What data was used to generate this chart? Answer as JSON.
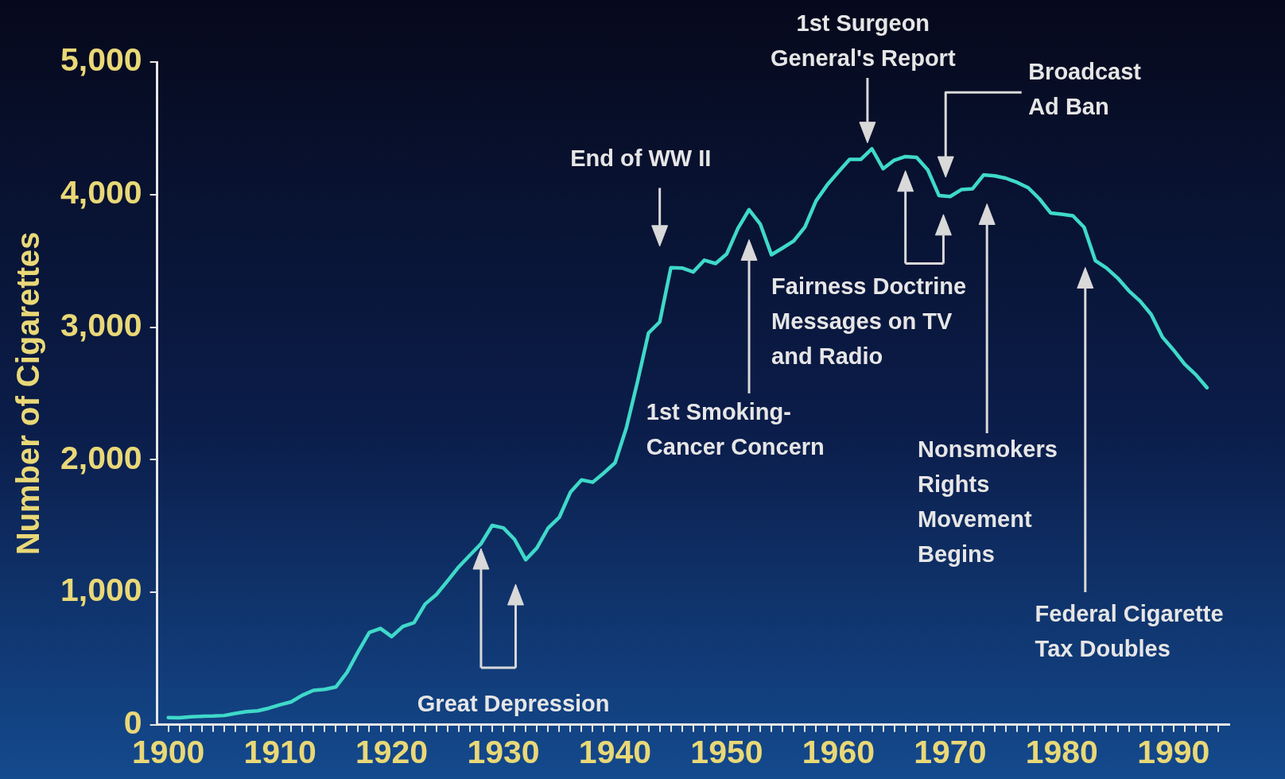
{
  "chart_data": {
    "type": "line",
    "ylabel": "Number of Cigarettes",
    "x": [
      1900,
      1901,
      1902,
      1903,
      1904,
      1905,
      1906,
      1907,
      1908,
      1909,
      1910,
      1911,
      1912,
      1913,
      1914,
      1915,
      1916,
      1917,
      1918,
      1919,
      1920,
      1921,
      1922,
      1923,
      1924,
      1925,
      1926,
      1927,
      1928,
      1929,
      1930,
      1931,
      1932,
      1933,
      1934,
      1935,
      1936,
      1937,
      1938,
      1939,
      1940,
      1941,
      1942,
      1943,
      1944,
      1945,
      1946,
      1947,
      1948,
      1949,
      1950,
      1951,
      1952,
      1953,
      1954,
      1955,
      1956,
      1957,
      1958,
      1959,
      1960,
      1961,
      1962,
      1963,
      1964,
      1965,
      1966,
      1967,
      1968,
      1969,
      1970,
      1971,
      1972,
      1973,
      1974,
      1975,
      1976,
      1977,
      1978,
      1979,
      1980,
      1981,
      1982,
      1983,
      1984,
      1985,
      1986,
      1987,
      1988,
      1989,
      1990,
      1991,
      1992,
      1993
    ],
    "series": [
      {
        "color": "#3fd9c9",
        "values": [
          54,
          53,
          60,
          64,
          66,
          70,
          86,
          99,
          105,
          125,
          151,
          173,
          223,
          260,
          267,
          285,
          395,
          551,
          697,
          727,
          665,
          742,
          770,
          911,
          982,
          1085,
          1191,
          1279,
          1366,
          1504,
          1485,
          1399,
          1245,
          1334,
          1483,
          1564,
          1754,
          1847,
          1830,
          1900,
          1976,
          2236,
          2585,
          2956,
          3039,
          3449,
          3446,
          3416,
          3505,
          3480,
          3552,
          3744,
          3886,
          3778,
          3546,
          3597,
          3650,
          3755,
          3953,
          4073,
          4171,
          4266,
          4265,
          4345,
          4195,
          4259,
          4287,
          4280,
          4186,
          3993,
          3985,
          4037,
          4043,
          4148,
          4141,
          4123,
          4092,
          4051,
          3967,
          3861,
          3851,
          3840,
          3753,
          3502,
          3446,
          3370,
          3274,
          3197,
          3096,
          2926,
          2828,
          2720,
          2641,
          2543
        ]
      }
    ],
    "xlim": [
      1899,
      1995
    ],
    "xticks": [
      1900,
      {
        "value": 1901,
        "label": null
      },
      {
        "value": 1902,
        "label": null
      },
      {
        "value": 1903,
        "label": null
      },
      {
        "value": 1904,
        "label": null
      },
      {
        "value": 1905,
        "label": null
      },
      {
        "value": 1906,
        "label": null
      },
      {
        "value": 1907,
        "label": null
      },
      {
        "value": 1908,
        "label": null
      },
      {
        "value": 1909,
        "label": null
      },
      1910,
      {
        "value": 1911,
        "label": null
      },
      {
        "value": 1912,
        "label": null
      },
      {
        "value": 1913,
        "label": null
      },
      {
        "value": 1914,
        "label": null
      },
      {
        "value": 1915,
        "label": null
      },
      {
        "value": 1916,
        "label": null
      },
      {
        "value": 1917,
        "label": null
      },
      {
        "value": 1918,
        "label": null
      },
      {
        "value": 1919,
        "label": null
      },
      1920,
      {
        "value": 1921,
        "label": null
      },
      {
        "value": 1922,
        "label": null
      },
      {
        "value": 1923,
        "label": null
      },
      {
        "value": 1924,
        "label": null
      },
      {
        "value": 1925,
        "label": null
      },
      {
        "value": 1926,
        "label": null
      },
      {
        "value": 1927,
        "label": null
      },
      {
        "value": 1928,
        "label": null
      },
      {
        "value": 1929,
        "label": null
      },
      1930,
      {
        "value": 1931,
        "label": null
      },
      {
        "value": 1932,
        "label": null
      },
      {
        "value": 1933,
        "label": null
      },
      {
        "value": 1934,
        "label": null
      },
      {
        "value": 1935,
        "label": null
      },
      {
        "value": 1936,
        "label": null
      },
      {
        "value": 1937,
        "label": null
      },
      {
        "value": 1938,
        "label": null
      },
      {
        "value": 1939,
        "label": null
      },
      1940,
      {
        "value": 1941,
        "label": null
      },
      {
        "value": 1942,
        "label": null
      },
      {
        "value": 1943,
        "label": null
      },
      {
        "value": 1944,
        "label": null
      },
      {
        "value": 1945,
        "label": null
      },
      {
        "value": 1946,
        "label": null
      },
      {
        "value": 1947,
        "label": null
      },
      {
        "value": 1948,
        "label": null
      },
      {
        "value": 1949,
        "label": null
      },
      1950,
      {
        "value": 1951,
        "label": null
      },
      {
        "value": 1952,
        "label": null
      },
      {
        "value": 1953,
        "label": null
      },
      {
        "value": 1954,
        "label": null
      },
      {
        "value": 1955,
        "label": null
      },
      {
        "value": 1956,
        "label": null
      },
      {
        "value": 1957,
        "label": null
      },
      {
        "value": 1958,
        "label": null
      },
      {
        "value": 1959,
        "label": null
      },
      1960,
      {
        "value": 1961,
        "label": null
      },
      {
        "value": 1962,
        "label": null
      },
      {
        "value": 1963,
        "label": null
      },
      {
        "value": 1964,
        "label": null
      },
      {
        "value": 1965,
        "label": null
      },
      {
        "value": 1966,
        "label": null
      },
      {
        "value": 1967,
        "label": null
      },
      {
        "value": 1968,
        "label": null
      },
      {
        "value": 1969,
        "label": null
      },
      1970,
      {
        "value": 1971,
        "label": null
      },
      {
        "value": 1972,
        "label": null
      },
      {
        "value": 1973,
        "label": null
      },
      {
        "value": 1974,
        "label": null
      },
      {
        "value": 1975,
        "label": null
      },
      {
        "value": 1976,
        "label": null
      },
      {
        "value": 1977,
        "label": null
      },
      {
        "value": 1978,
        "label": null
      },
      {
        "value": 1979,
        "label": null
      },
      1980,
      {
        "value": 1981,
        "label": null
      },
      {
        "value": 1982,
        "label": null
      },
      {
        "value": 1983,
        "label": null
      },
      {
        "value": 1984,
        "label": null
      },
      {
        "value": 1985,
        "label": null
      },
      {
        "value": 1986,
        "label": null
      },
      {
        "value": 1987,
        "label": null
      },
      {
        "value": 1988,
        "label": null
      },
      {
        "value": 1989,
        "label": null
      },
      1990,
      {
        "value": 1991,
        "label": null
      },
      {
        "value": 1992,
        "label": null
      },
      {
        "value": 1993,
        "label": null
      },
      {
        "value": 1994,
        "label": null
      }
    ],
    "ylim": [
      0,
      5000
    ],
    "yticks": [
      0,
      {
        "value": 1000,
        "label": "1,000"
      },
      {
        "value": 2000,
        "label": "2,000"
      },
      {
        "value": 3000,
        "label": "3,000"
      },
      {
        "value": 4000,
        "label": "4,000"
      },
      {
        "value": 5000,
        "label": "5,000"
      }
    ],
    "grid": false,
    "legend": false,
    "marker": "none",
    "line_style": "solid",
    "annotations": [
      "Great Depression",
      "End of WW II",
      "1st Smoking-\nCancer Concern",
      "1st Surgeon\nGeneral's Report",
      "Broadcast\nAd Ban",
      "Fairness Doctrine\nMessages on TV\nand Radio",
      "Nonsmokers\nRights\nMovement\nBegins",
      "Federal Cigarette\nTax Doubles"
    ]
  }
}
